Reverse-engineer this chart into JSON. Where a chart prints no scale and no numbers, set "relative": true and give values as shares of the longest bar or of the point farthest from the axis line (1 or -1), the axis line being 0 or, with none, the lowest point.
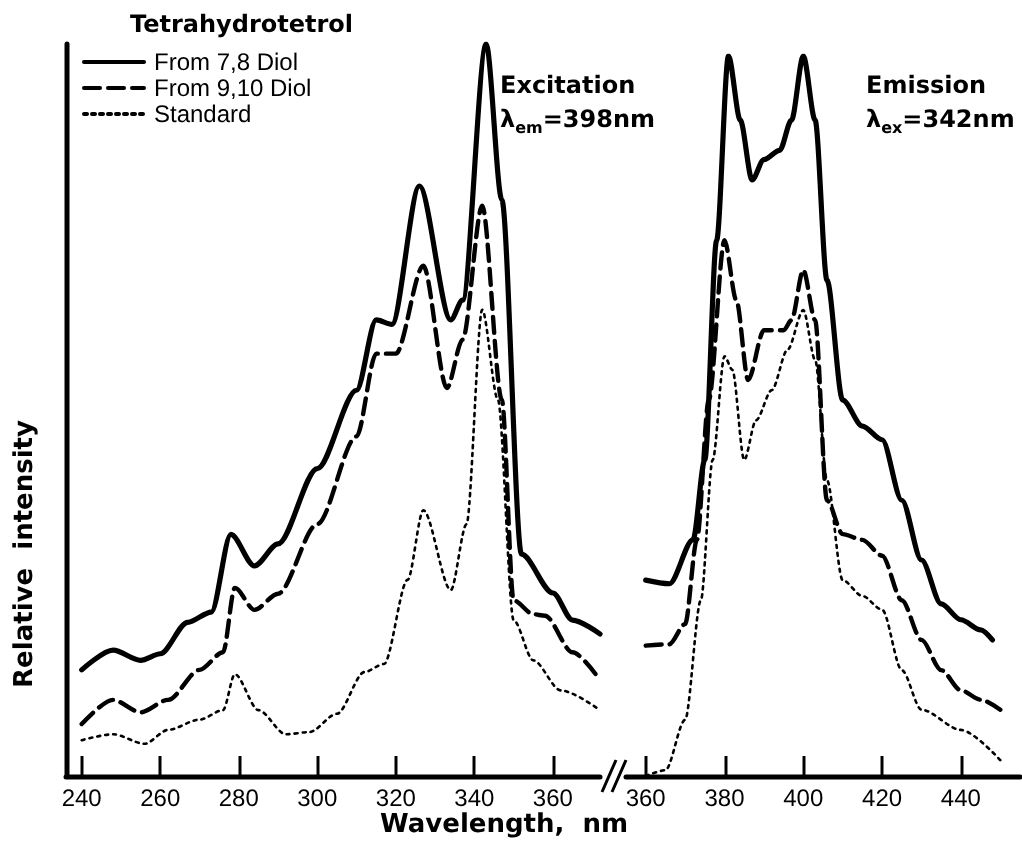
{
  "chart_data": [
    {
      "type": "line",
      "xlabel": "Wavelength,  nm",
      "ylabel": "Relative  intensity",
      "legend_title": "Tetrahydrotetrol",
      "legend": "top left",
      "relative": true,
      "tick_labels": "x",
      "grid": false,
      "marker": "none",
      "annotations": [
        "Excitation",
        "λ$_{em}$=398nm"
      ],
      "xlim": [
        236,
        372
      ],
      "xticks": [
        240,
        260,
        280,
        300,
        320,
        340,
        360
      ],
      "series": [
        {
          "name": "From 7,8 Diol",
          "color": "#000000",
          "line_style": "solid",
          "x": [
            240,
            248,
            255,
            260,
            267,
            273,
            278,
            284,
            290,
            300,
            310,
            315,
            319,
            326,
            334,
            337,
            343,
            347,
            352,
            360,
            365,
            372
          ],
          "values": [
            0.145,
            0.172,
            0.158,
            0.167,
            0.21,
            0.224,
            0.33,
            0.287,
            0.317,
            0.42,
            0.527,
            0.623,
            0.617,
            0.806,
            0.623,
            0.65,
            1.0,
            0.787,
            0.303,
            0.25,
            0.213,
            0.194
          ]
        },
        {
          "name": "From 9,10 Diol",
          "color": "#000000",
          "line_style": "dashed",
          "x": [
            240,
            248,
            255,
            262,
            270,
            276,
            279,
            284,
            290,
            300,
            310,
            315,
            320,
            327,
            333,
            337,
            342,
            347,
            350,
            355,
            358,
            365,
            372
          ],
          "values": [
            0.071,
            0.104,
            0.087,
            0.104,
            0.145,
            0.169,
            0.257,
            0.227,
            0.249,
            0.344,
            0.464,
            0.577,
            0.577,
            0.697,
            0.53,
            0.596,
            0.779,
            0.514,
            0.24,
            0.221,
            0.219,
            0.169,
            0.131
          ]
        },
        {
          "name": "Standard",
          "color": "#000000",
          "line_style": "dotted",
          "x": [
            240,
            248,
            256,
            262,
            270,
            276,
            279,
            285,
            292,
            298,
            305,
            312,
            317,
            323,
            327,
            334,
            338,
            342,
            346,
            350,
            355,
            362,
            372
          ],
          "values": [
            0.049,
            0.057,
            0.044,
            0.063,
            0.077,
            0.09,
            0.139,
            0.09,
            0.057,
            0.06,
            0.085,
            0.142,
            0.153,
            0.268,
            0.363,
            0.254,
            0.344,
            0.637,
            0.514,
            0.213,
            0.158,
            0.117,
            0.09
          ]
        }
      ]
    },
    {
      "type": "line",
      "relative": true,
      "tick_labels": "x",
      "grid": false,
      "marker": "none",
      "annotations": [
        "Emission",
        "λ$_{ex}$=342nm"
      ],
      "xlim": [
        355,
        455
      ],
      "xticks": [
        360,
        380,
        400,
        420,
        440
      ],
      "series": [
        {
          "color": "#000000",
          "line_style": "solid",
          "x": [
            360,
            366,
            372,
            375,
            378,
            381,
            384,
            387,
            390,
            394,
            397,
            400,
            403,
            406,
            410,
            415,
            420,
            425,
            430,
            435,
            440,
            445,
            448
          ],
          "values": [
            0.272,
            0.267,
            0.328,
            0.439,
            0.744,
            1.0,
            0.911,
            0.828,
            0.856,
            0.869,
            0.911,
            1.0,
            0.911,
            0.689,
            0.522,
            0.486,
            0.467,
            0.383,
            0.3,
            0.239,
            0.217,
            0.203,
            0.189
          ]
        },
        {
          "color": "#000000",
          "line_style": "dashed",
          "x": [
            360,
            366,
            370,
            373,
            376,
            380,
            383,
            386,
            390,
            395,
            397,
            400,
            403,
            406,
            410,
            415,
            420,
            425,
            430,
            435,
            440,
            445,
            450
          ],
          "values": [
            0.181,
            0.183,
            0.211,
            0.328,
            0.522,
            0.744,
            0.661,
            0.55,
            0.619,
            0.619,
            0.633,
            0.703,
            0.633,
            0.383,
            0.336,
            0.328,
            0.306,
            0.244,
            0.189,
            0.147,
            0.119,
            0.106,
            0.092
          ]
        },
        {
          "color": "#000000",
          "line_style": "dotted",
          "x": [
            360,
            365,
            370,
            374,
            377,
            380,
            382,
            385,
            388,
            392,
            396,
            400,
            403,
            406,
            410,
            415,
            420,
            425,
            430,
            440,
            450
          ],
          "values": [
            0,
            0.008,
            0.078,
            0.244,
            0.439,
            0.583,
            0.564,
            0.439,
            0.494,
            0.536,
            0.592,
            0.647,
            0.578,
            0.411,
            0.272,
            0.25,
            0.231,
            0.147,
            0.092,
            0.064,
            0.022
          ]
        }
      ]
    }
  ]
}
